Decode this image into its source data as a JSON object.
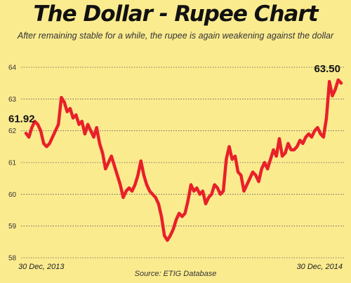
{
  "chart_data": {
    "type": "line",
    "title": "The Dollar - Rupee Chart",
    "subtitle": "After remaining stable for a while, the rupee is again weakening against the dollar",
    "source": "Source: ETIG Database",
    "x_labels": [
      "30 Dec, 2013",
      "30 Dec, 2014"
    ],
    "ylim": [
      58,
      64
    ],
    "yticks": [
      58,
      59,
      60,
      61,
      62,
      63,
      64
    ],
    "grid": true,
    "series": [
      {
        "color": "#e8202a",
        "values": [
          61.92,
          61.8,
          62.1,
          62.3,
          62.2,
          62.0,
          61.6,
          61.5,
          61.6,
          61.8,
          62.0,
          62.2,
          63.05,
          62.9,
          62.6,
          62.7,
          62.4,
          62.5,
          62.2,
          62.3,
          61.9,
          62.2,
          62.0,
          61.8,
          62.1,
          61.6,
          61.3,
          60.8,
          61.0,
          61.2,
          60.9,
          60.6,
          60.3,
          59.9,
          60.1,
          60.2,
          60.1,
          60.3,
          60.6,
          61.05,
          60.6,
          60.3,
          60.1,
          60.0,
          59.9,
          59.7,
          59.3,
          58.7,
          58.55,
          58.7,
          58.9,
          59.2,
          59.4,
          59.3,
          59.4,
          59.8,
          60.3,
          60.1,
          60.2,
          60.0,
          60.1,
          59.7,
          59.9,
          60.0,
          60.3,
          60.2,
          60.0,
          60.1,
          61.1,
          61.5,
          61.1,
          61.2,
          60.7,
          60.6,
          60.1,
          60.3,
          60.5,
          60.7,
          60.6,
          60.4,
          60.8,
          61.0,
          60.8,
          61.1,
          61.4,
          61.2,
          61.75,
          61.2,
          61.3,
          61.6,
          61.4,
          61.4,
          61.5,
          61.7,
          61.6,
          61.8,
          61.9,
          61.8,
          62.0,
          62.1,
          61.9,
          61.8,
          62.4,
          63.55,
          63.1,
          63.3,
          63.6,
          63.5
        ]
      }
    ],
    "annotations": [
      {
        "label": "61.92",
        "index": 0
      },
      {
        "label": "63.50",
        "index": 107
      }
    ]
  }
}
